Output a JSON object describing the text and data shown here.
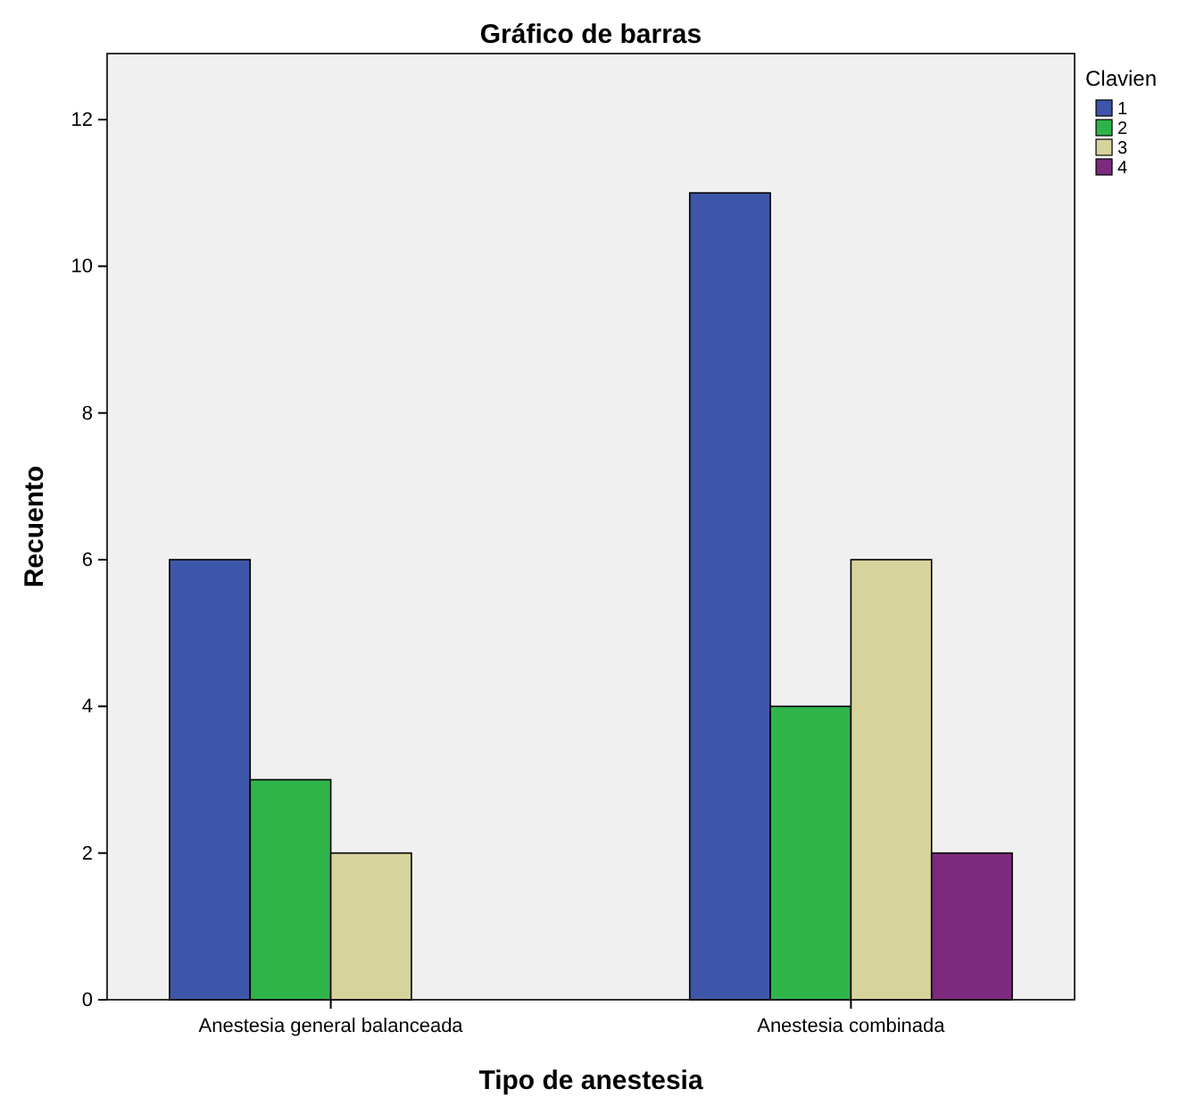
{
  "chart_data": {
    "type": "bar",
    "title": "Gráfico de barras",
    "xlabel": "Tipo de anestesia",
    "ylabel": "Recuento",
    "legend_title": "Clavien",
    "legend": "right",
    "grid": false,
    "categories": [
      "Anestesia general balanceada",
      "Anestesia combinada"
    ],
    "ylim": [
      0,
      12.9
    ],
    "yticks": [
      0,
      2,
      4,
      6,
      8,
      10,
      12
    ],
    "series": [
      {
        "name": "1",
        "color": "#3e56a9",
        "values": [
          6,
          11
        ]
      },
      {
        "name": "2",
        "color": "#2fb44a",
        "values": [
          3,
          4
        ]
      },
      {
        "name": "3",
        "color": "#d7d39c",
        "values": [
          2,
          6
        ]
      },
      {
        "name": "4",
        "color": "#7c2a7e",
        "values": [
          null,
          2
        ]
      }
    ]
  }
}
